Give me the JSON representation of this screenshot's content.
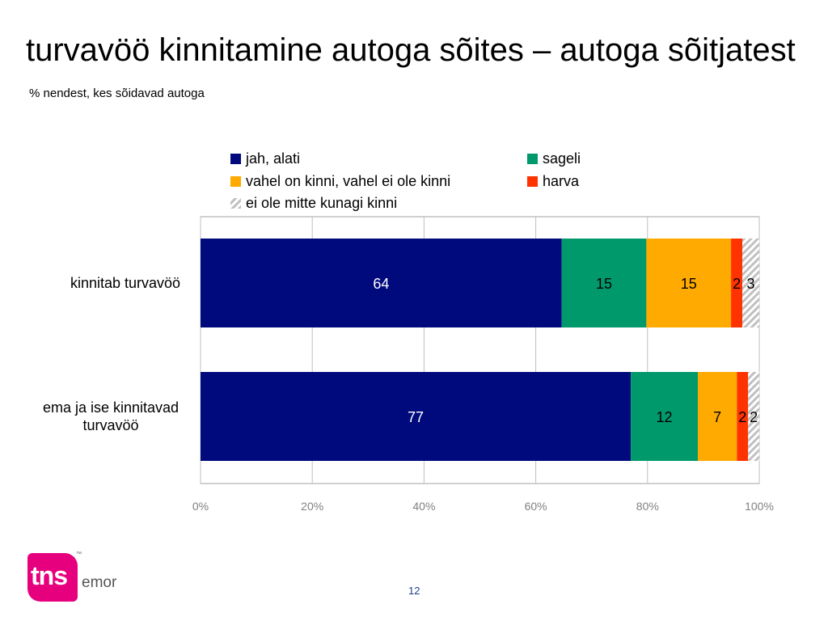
{
  "slide": {
    "title": "turvavöö kinnitamine autoga sõites – autoga sõitjatest",
    "subtitle": "% nendest, kes sõidavad autoga",
    "page_number": "12",
    "logo": {
      "text": "tns",
      "brand": "emor",
      "trademark": "™",
      "color": "#e6007e"
    }
  },
  "chart_data": {
    "type": "bar",
    "orientation": "horizontal",
    "stacked": true,
    "percent_stacked": true,
    "categories": [
      "kinnitab turvavöö",
      "ema ja ise kinnitavad turvavöö"
    ],
    "category_label_lines": [
      [
        "kinnitab turvavöö"
      ],
      [
        "ema ja ise kinnitavad",
        "turvavöö"
      ]
    ],
    "series": [
      {
        "name": "jah, alati",
        "values": [
          64,
          77
        ],
        "color": "#000a7d",
        "label_color": "#ffffff"
      },
      {
        "name": "sageli",
        "values": [
          15,
          12
        ],
        "color": "#00996b",
        "label_color": "#000000"
      },
      {
        "name": "vahel on kinni, vahel ei ole kinni",
        "values": [
          15,
          7
        ],
        "color": "#ffaa00",
        "label_color": "#000000"
      },
      {
        "name": "harva",
        "values": [
          2,
          2
        ],
        "color": "#ff3300",
        "label_color": "#000000"
      },
      {
        "name": "ei ole mitte kunagi kinni",
        "values": [
          3,
          2
        ],
        "color": "#c0c0c0",
        "pattern": "diagonal-hatch",
        "label_color": "#000000"
      }
    ],
    "xlim": [
      0,
      100
    ],
    "x_ticks": [
      "0%",
      "20%",
      "40%",
      "60%",
      "80%",
      "100%"
    ],
    "grid": true,
    "legend_position": "top"
  }
}
